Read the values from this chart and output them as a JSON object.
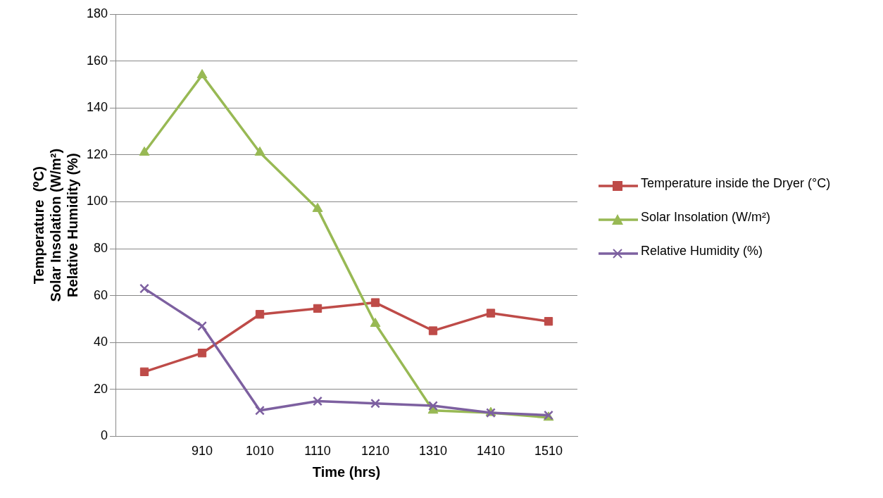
{
  "chart_data": {
    "type": "line",
    "xlabel": "Time (hrs)",
    "ylabel": "Temperature  (⁰C)\nSolar Insolation (W/m²)\nRelative Humidity (%)",
    "categories": [
      null,
      "910",
      "1010",
      "1110",
      "1210",
      "1310",
      "1410",
      "1510"
    ],
    "ylim": [
      0,
      180
    ],
    "yticks": [
      0,
      20,
      40,
      60,
      80,
      100,
      120,
      140,
      160,
      180
    ],
    "grid": "y",
    "legend": "right",
    "series": [
      {
        "name": "Temperature inside the Dryer (°C)",
        "color": "#be4b48",
        "marker": "square",
        "values": [
          27.5,
          35.5,
          52,
          54.5,
          57,
          45,
          52.5,
          49
        ]
      },
      {
        "name": "Solar Insolation (W/m²)",
        "color": "#98b954",
        "marker": "triangle",
        "values": [
          121,
          154,
          121,
          97,
          48,
          11,
          10,
          8
        ]
      },
      {
        "name": "Relative Humidity (%)",
        "color": "#7d60a0",
        "marker": "cross",
        "values": [
          63,
          47,
          11,
          15,
          14,
          13,
          10,
          9
        ]
      }
    ]
  }
}
